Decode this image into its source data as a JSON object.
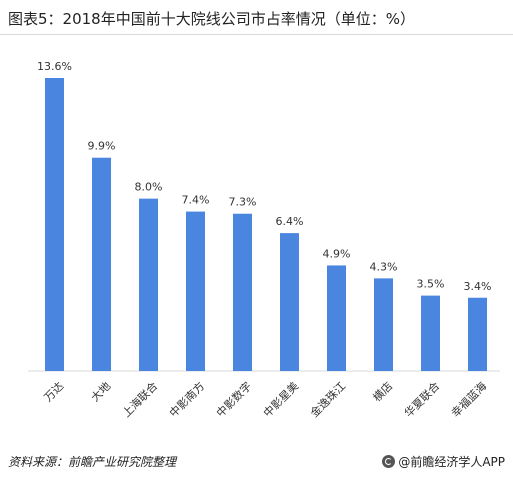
{
  "header": {
    "title": "图表5：2018年中国前十大院线公司市占率情况（单位：%）"
  },
  "footer": {
    "source": "资料来源：前瞻产业研究院整理",
    "brand": "@前瞻经济学人APP",
    "brand_icon": "qianzhan-logo-icon"
  },
  "colors": {
    "bar": "#4a86e0"
  },
  "chart_data": {
    "type": "bar",
    "title": "图表5：2018年中国前十大院线公司市占率情况（单位：%）",
    "categories": [
      "万达",
      "大地",
      "上海联合",
      "中影南方",
      "中影数字",
      "中影星美",
      "金逸珠江",
      "横店",
      "华夏联合",
      "幸福蓝海"
    ],
    "values": [
      13.6,
      9.9,
      8.0,
      7.4,
      7.3,
      6.4,
      4.9,
      4.3,
      3.5,
      3.4
    ],
    "data_labels": [
      "13.6%",
      "9.9%",
      "8.0%",
      "7.4%",
      "7.3%",
      "6.4%",
      "4.9%",
      "4.3%",
      "3.5%",
      "3.4%"
    ],
    "ylim": [
      0,
      13.6
    ],
    "grid": false,
    "legend": "none"
  }
}
